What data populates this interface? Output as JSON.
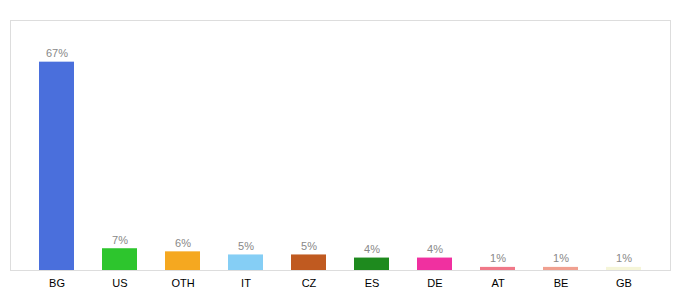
{
  "chart_data": {
    "type": "bar",
    "categories": [
      "BG",
      "US",
      "OTH",
      "IT",
      "CZ",
      "ES",
      "DE",
      "AT",
      "BE",
      "GB"
    ],
    "values": [
      67,
      7,
      6,
      5,
      5,
      4,
      4,
      1,
      1,
      1
    ],
    "value_labels": [
      "67%",
      "7%",
      "6%",
      "5%",
      "5%",
      "4%",
      "4%",
      "1%",
      "1%",
      "1%"
    ],
    "colors": [
      "#4a6fdc",
      "#2dc52d",
      "#f5a820",
      "#85cef5",
      "#c05a20",
      "#1e8a1e",
      "#f030a0",
      "#f07888",
      "#f0a090",
      "#f5f5d8"
    ],
    "ylim": [
      0,
      80.4
    ],
    "data_labels": true,
    "tick_labels": "x",
    "grid": false
  }
}
